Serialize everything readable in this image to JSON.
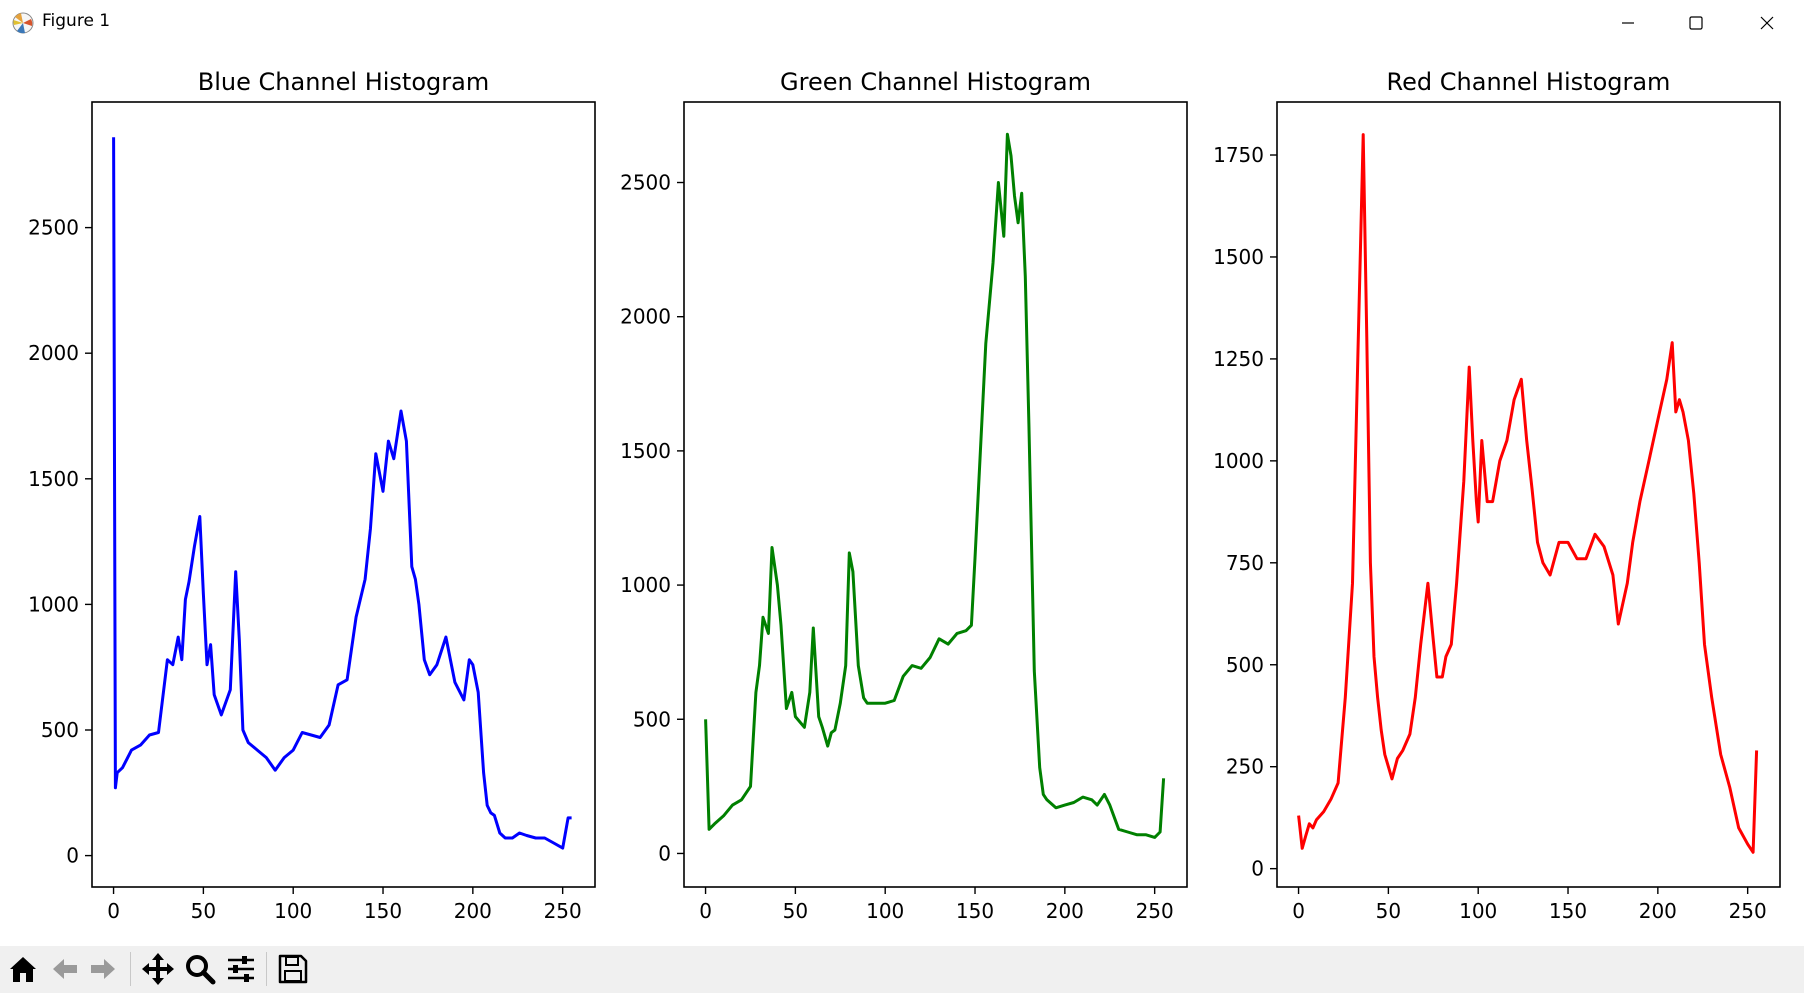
{
  "window": {
    "title": "Figure 1"
  },
  "icons": {
    "app": "matplotlib-figure-icon",
    "minimize": "minimize-icon",
    "maximize": "maximize-icon",
    "close": "close-icon",
    "home": "home-icon",
    "back": "arrow-left-icon",
    "forward": "arrow-right-icon",
    "pan": "move-arrows-icon",
    "zoom": "magnifier-icon",
    "configure": "sliders-icon",
    "save": "floppy-disk-icon"
  },
  "chart_data": [
    {
      "type": "line",
      "title": "Blue Channel Histogram",
      "color": "#0000ff",
      "xlim": [
        -12,
        268
      ],
      "ylim": [
        -125,
        3000
      ],
      "xticks": [
        0,
        50,
        100,
        150,
        200,
        250
      ],
      "yticks": [
        0,
        500,
        1000,
        1500,
        2000,
        2500
      ],
      "x": [
        0,
        1,
        2,
        5,
        10,
        15,
        20,
        25,
        30,
        33,
        36,
        38,
        40,
        42,
        45,
        48,
        50,
        52,
        54,
        56,
        60,
        65,
        68,
        70,
        72,
        75,
        80,
        85,
        90,
        95,
        100,
        105,
        110,
        115,
        120,
        125,
        130,
        135,
        140,
        143,
        146,
        150,
        153,
        156,
        160,
        163,
        166,
        168,
        170,
        173,
        176,
        180,
        185,
        190,
        195,
        198,
        200,
        203,
        206,
        208,
        210,
        212,
        215,
        218,
        222,
        226,
        230,
        235,
        240,
        245,
        250,
        253,
        255
      ],
      "values": [
        2860,
        270,
        330,
        350,
        420,
        440,
        480,
        490,
        780,
        760,
        870,
        780,
        1020,
        1090,
        1230,
        1350,
        1040,
        760,
        840,
        640,
        560,
        660,
        1130,
        860,
        500,
        450,
        420,
        390,
        340,
        390,
        420,
        490,
        480,
        470,
        520,
        680,
        700,
        950,
        1100,
        1300,
        1600,
        1450,
        1650,
        1580,
        1770,
        1650,
        1150,
        1100,
        1000,
        780,
        720,
        760,
        870,
        690,
        620,
        780,
        760,
        650,
        330,
        200,
        170,
        160,
        90,
        70,
        70,
        90,
        80,
        70,
        70,
        50,
        30,
        150,
        150
      ]
    },
    {
      "type": "line",
      "title": "Green Channel Histogram",
      "color": "#008000",
      "xlim": [
        -12,
        268
      ],
      "ylim": [
        -125,
        2800
      ],
      "xticks": [
        0,
        50,
        100,
        150,
        200,
        250
      ],
      "yticks": [
        0,
        500,
        1000,
        1500,
        2000,
        2500
      ],
      "x": [
        0,
        2,
        5,
        10,
        15,
        20,
        25,
        28,
        30,
        32,
        35,
        37,
        40,
        42,
        45,
        48,
        50,
        55,
        58,
        60,
        63,
        65,
        68,
        70,
        72,
        75,
        78,
        80,
        82,
        85,
        88,
        90,
        95,
        100,
        105,
        110,
        115,
        120,
        125,
        130,
        135,
        140,
        145,
        148,
        150,
        153,
        156,
        160,
        163,
        166,
        168,
        170,
        172,
        174,
        176,
        178,
        180,
        183,
        186,
        188,
        190,
        195,
        200,
        205,
        210,
        215,
        218,
        222,
        225,
        230,
        235,
        240,
        245,
        250,
        253,
        255
      ],
      "values": [
        500,
        90,
        110,
        140,
        180,
        200,
        250,
        600,
        700,
        880,
        820,
        1140,
        1000,
        850,
        540,
        600,
        510,
        470,
        600,
        840,
        510,
        470,
        400,
        450,
        460,
        560,
        700,
        1120,
        1050,
        700,
        580,
        560,
        560,
        560,
        570,
        660,
        700,
        690,
        730,
        800,
        780,
        820,
        830,
        850,
        1100,
        1500,
        1900,
        2200,
        2500,
        2300,
        2680,
        2600,
        2450,
        2350,
        2460,
        2150,
        1600,
        680,
        320,
        220,
        200,
        170,
        180,
        190,
        210,
        200,
        180,
        220,
        180,
        90,
        80,
        70,
        70,
        60,
        80,
        280
      ]
    },
    {
      "type": "line",
      "title": "Red Channel Histogram",
      "color": "#ff0000",
      "xlim": [
        -12,
        268
      ],
      "ylim": [
        -45,
        1880
      ],
      "xticks": [
        0,
        50,
        100,
        150,
        200,
        250
      ],
      "yticks": [
        0,
        250,
        500,
        750,
        1000,
        1250,
        1500,
        1750
      ],
      "x": [
        0,
        2,
        4,
        6,
        8,
        10,
        14,
        18,
        22,
        26,
        30,
        33,
        36,
        38,
        40,
        42,
        44,
        46,
        48,
        50,
        52,
        55,
        58,
        62,
        65,
        68,
        72,
        75,
        77,
        80,
        82,
        85,
        88,
        92,
        95,
        97,
        99,
        100,
        102,
        105,
        108,
        112,
        116,
        120,
        124,
        127,
        130,
        133,
        136,
        140,
        145,
        150,
        155,
        160,
        165,
        170,
        175,
        178,
        180,
        183,
        186,
        190,
        195,
        200,
        205,
        208,
        210,
        212,
        214,
        217,
        220,
        223,
        226,
        230,
        235,
        240,
        245,
        250,
        253,
        255
      ],
      "values": [
        130,
        50,
        80,
        110,
        100,
        120,
        140,
        170,
        210,
        420,
        700,
        1250,
        1800,
        1300,
        750,
        520,
        420,
        340,
        280,
        250,
        220,
        270,
        290,
        330,
        420,
        550,
        700,
        560,
        470,
        470,
        520,
        550,
        700,
        950,
        1230,
        1050,
        900,
        850,
        1050,
        900,
        900,
        1000,
        1050,
        1150,
        1200,
        1050,
        930,
        800,
        750,
        720,
        800,
        800,
        760,
        760,
        820,
        790,
        720,
        600,
        640,
        700,
        800,
        900,
        1000,
        1100,
        1200,
        1290,
        1120,
        1150,
        1120,
        1050,
        920,
        750,
        550,
        420,
        280,
        200,
        100,
        60,
        40,
        290
      ]
    }
  ]
}
